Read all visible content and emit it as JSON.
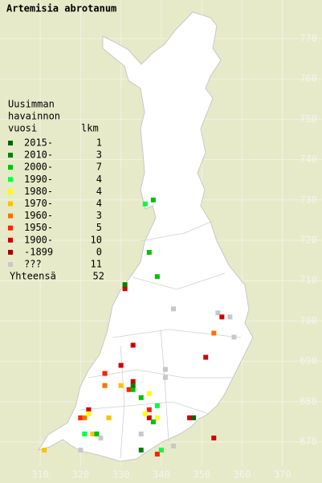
{
  "title": "Artemisia abrotanum",
  "axes": {
    "x_labels": [
      310,
      320,
      330,
      340,
      350,
      360,
      370
    ],
    "y_labels": [
      770,
      760,
      750,
      740,
      730,
      720,
      710,
      700,
      690,
      680,
      670
    ]
  },
  "legend": {
    "heading": [
      "Uusimman",
      "havainnon",
      "vuosi"
    ],
    "count_heading": "lkm",
    "items": [
      {
        "label": "2015-",
        "count": 1,
        "color": "#006400",
        "points": [
          [
            348,
            676
          ]
        ]
      },
      {
        "label": "2010-",
        "count": 3,
        "color": "#008000",
        "points": [
          [
            331,
            709
          ],
          [
            335,
            668
          ],
          [
            333,
            684
          ]
        ]
      },
      {
        "label": "2000-",
        "count": 7,
        "color": "#00c000",
        "points": [
          [
            338,
            730
          ],
          [
            337,
            717
          ],
          [
            339,
            711
          ],
          [
            333,
            683
          ],
          [
            335,
            681
          ],
          [
            338,
            675
          ],
          [
            324,
            672
          ]
        ]
      },
      {
        "label": "1990-",
        "count": 4,
        "color": "#00ff40",
        "points": [
          [
            336,
            729
          ],
          [
            339,
            679
          ],
          [
            340,
            668
          ],
          [
            321,
            672
          ]
        ]
      },
      {
        "label": "1980-",
        "count": 4,
        "color": "#ffff00",
        "points": [
          [
            337,
            682
          ],
          [
            336,
            677
          ],
          [
            322,
            677
          ],
          [
            339,
            676
          ]
        ]
      },
      {
        "label": "1970-",
        "count": 4,
        "color": "#ffc000",
        "points": [
          [
            330,
            684
          ],
          [
            327,
            676
          ],
          [
            311,
            668
          ],
          [
            323,
            672
          ]
        ]
      },
      {
        "label": "1960-",
        "count": 3,
        "color": "#ff7000",
        "points": [
          [
            353,
            697
          ],
          [
            326,
            684
          ],
          [
            321,
            676
          ]
        ]
      },
      {
        "label": "1950-",
        "count": 5,
        "color": "#ff2000",
        "points": [
          [
            326,
            687
          ],
          [
            337,
            678
          ],
          [
            339,
            667
          ],
          [
            332,
            683
          ],
          [
            320,
            676
          ]
        ]
      },
      {
        "label": "1900-",
        "count": 10,
        "color": "#d00000",
        "points": [
          [
            331,
            708
          ],
          [
            355,
            701
          ],
          [
            333,
            694
          ],
          [
            351,
            691
          ],
          [
            330,
            689
          ],
          [
            333,
            685
          ],
          [
            322,
            678
          ],
          [
            337,
            676
          ],
          [
            347,
            676
          ],
          [
            353,
            671
          ]
        ]
      },
      {
        "label": "-1899",
        "count": 0,
        "color": "#a00000",
        "points": []
      },
      {
        "label": "???",
        "count": 11,
        "color": "#c8c8c8",
        "points": [
          [
            343,
            703
          ],
          [
            354,
            702
          ],
          [
            357,
            701
          ],
          [
            358,
            696
          ],
          [
            341,
            688
          ],
          [
            341,
            686
          ],
          [
            339,
            679
          ],
          [
            325,
            671
          ],
          [
            335,
            672
          ],
          [
            343,
            669
          ],
          [
            320,
            668
          ]
        ]
      }
    ],
    "total_label": "Yhteensä",
    "total": 52
  }
}
